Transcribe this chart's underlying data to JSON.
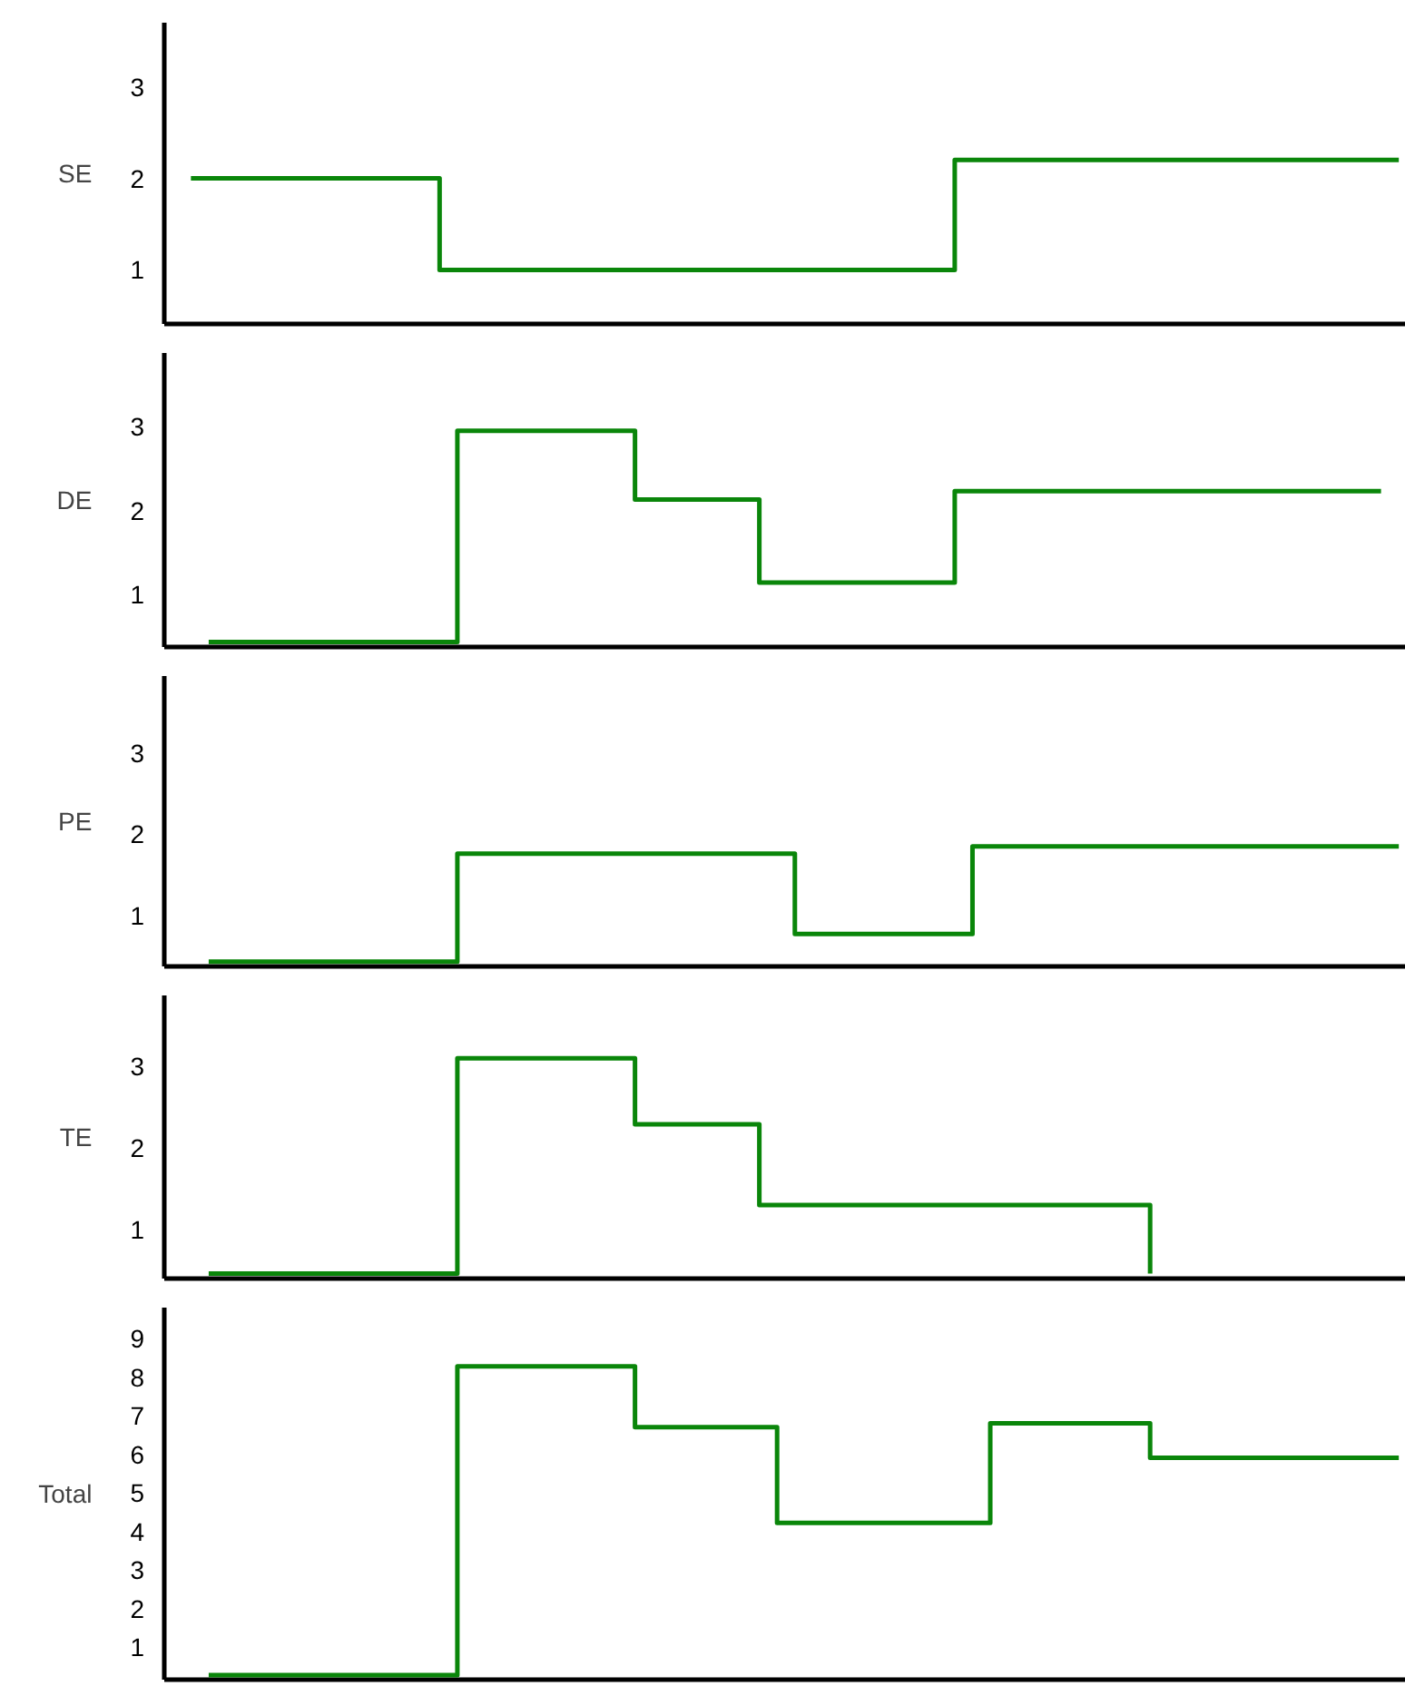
{
  "chart_data": [
    {
      "type": "step",
      "ylabel": "SE",
      "categories": [
        null,
        null,
        null,
        null,
        null,
        null,
        null,
        null,
        null,
        null,
        null,
        null,
        null,
        null,
        null,
        null,
        null,
        null,
        null,
        null,
        null,
        null,
        null,
        null,
        null,
        null,
        null,
        null,
        null,
        null,
        null,
        null,
        null,
        null,
        null,
        null,
        null,
        null,
        null,
        null,
        null,
        null,
        null,
        null,
        null,
        null,
        null,
        null,
        null,
        null,
        null,
        null,
        null,
        null,
        null,
        null,
        null,
        null,
        null,
        null,
        null,
        null,
        null,
        null,
        null,
        null,
        null,
        null,
        null
      ],
      "series": [
        {
          "color": "#0a860a",
          "values": [
            2,
            2,
            2,
            2,
            2,
            2,
            2,
            2,
            2,
            2,
            2,
            2,
            2,
            2,
            1,
            1,
            1,
            1,
            1,
            1,
            1,
            1,
            1,
            1,
            1,
            1,
            1,
            1,
            1,
            1,
            1,
            1,
            1,
            1,
            1,
            1,
            1,
            1,
            1,
            1,
            1,
            1,
            1,
            2.2,
            2.2,
            2.2,
            2.2,
            2.2,
            2.2,
            2.2,
            2.2,
            2.2,
            2.2,
            2.2,
            2.2,
            2.2,
            2.2,
            2.2,
            2.2,
            2.2,
            2.2,
            2.2,
            2.2,
            2.2,
            2.2,
            2.2,
            2.2,
            2.2,
            2.2
          ]
        }
      ],
      "ylim": [
        0.41,
        3.7
      ],
      "yticks": [
        1,
        2,
        3
      ],
      "grid": false,
      "tick_labels": "y"
    },
    {
      "type": "step",
      "ylabel": "DE",
      "categories": [
        null,
        null,
        null,
        null,
        null,
        null,
        null,
        null,
        null,
        null,
        null,
        null,
        null,
        null,
        null,
        null,
        null,
        null,
        null,
        null,
        null,
        null,
        null,
        null,
        null,
        null,
        null,
        null,
        null,
        null,
        null,
        null,
        null,
        null,
        null,
        null,
        null,
        null,
        null,
        null,
        null,
        null,
        null,
        null,
        null,
        null,
        null,
        null,
        null,
        null,
        null,
        null,
        null,
        null,
        null,
        null,
        null,
        null,
        null,
        null,
        null,
        null,
        null,
        null,
        null,
        null,
        null,
        null,
        null
      ],
      "series": [
        {
          "color": "#0a860a",
          "values": [
            null,
            0.43,
            0.43,
            0.43,
            0.43,
            0.43,
            0.43,
            0.43,
            0.43,
            0.43,
            0.43,
            0.43,
            0.43,
            0.43,
            0.43,
            2.95,
            2.95,
            2.95,
            2.95,
            2.95,
            2.95,
            2.95,
            2.95,
            2.95,
            2.95,
            2.13,
            2.13,
            2.13,
            2.13,
            2.13,
            2.13,
            2.13,
            1.14,
            1.14,
            1.14,
            1.14,
            1.14,
            1.14,
            1.14,
            1.14,
            1.14,
            1.14,
            1.14,
            2.23,
            2.23,
            2.23,
            2.23,
            2.23,
            2.23,
            2.23,
            2.23,
            2.23,
            2.23,
            2.23,
            2.23,
            2.23,
            2.23,
            2.23,
            2.23,
            2.23,
            2.23,
            2.23,
            2.23,
            2.23,
            2.23,
            2.23,
            2.23,
            2.23,
            null
          ]
        }
      ],
      "ylim": [
        0.37,
        3.88
      ],
      "yticks": [
        1,
        2,
        3
      ],
      "grid": false,
      "tick_labels": "y"
    },
    {
      "type": "step",
      "ylabel": "PE",
      "categories": [
        null,
        null,
        null,
        null,
        null,
        null,
        null,
        null,
        null,
        null,
        null,
        null,
        null,
        null,
        null,
        null,
        null,
        null,
        null,
        null,
        null,
        null,
        null,
        null,
        null,
        null,
        null,
        null,
        null,
        null,
        null,
        null,
        null,
        null,
        null,
        null,
        null,
        null,
        null,
        null,
        null,
        null,
        null,
        null,
        null,
        null,
        null,
        null,
        null,
        null,
        null,
        null,
        null,
        null,
        null,
        null,
        null,
        null,
        null,
        null,
        null,
        null,
        null,
        null,
        null,
        null,
        null,
        null,
        null
      ],
      "series": [
        {
          "color": "#0a860a",
          "values": [
            null,
            0.43,
            0.43,
            0.43,
            0.43,
            0.43,
            0.43,
            0.43,
            0.43,
            0.43,
            0.43,
            0.43,
            0.43,
            0.43,
            0.43,
            1.76,
            1.76,
            1.76,
            1.76,
            1.76,
            1.76,
            1.76,
            1.76,
            1.76,
            1.76,
            1.76,
            1.76,
            1.76,
            1.76,
            1.76,
            1.76,
            1.76,
            1.76,
            1.76,
            0.77,
            0.77,
            0.77,
            0.77,
            0.77,
            0.77,
            0.77,
            0.77,
            0.77,
            0.77,
            1.85,
            1.85,
            1.85,
            1.85,
            1.85,
            1.85,
            1.85,
            1.85,
            1.85,
            1.85,
            1.85,
            1.85,
            1.85,
            1.85,
            1.85,
            1.85,
            1.85,
            1.85,
            1.85,
            1.85,
            1.85,
            1.85,
            1.85,
            1.85,
            1.85
          ]
        }
      ],
      "ylim": [
        0.37,
        3.95
      ],
      "yticks": [
        1,
        2,
        3
      ],
      "grid": false,
      "tick_labels": "y"
    },
    {
      "type": "step",
      "ylabel": "TE",
      "categories": [
        null,
        null,
        null,
        null,
        null,
        null,
        null,
        null,
        null,
        null,
        null,
        null,
        null,
        null,
        null,
        null,
        null,
        null,
        null,
        null,
        null,
        null,
        null,
        null,
        null,
        null,
        null,
        null,
        null,
        null,
        null,
        null,
        null,
        null,
        null,
        null,
        null,
        null,
        null,
        null,
        null,
        null,
        null,
        null,
        null,
        null,
        null,
        null,
        null,
        null,
        null,
        null,
        null,
        null,
        null,
        null,
        null,
        null,
        null,
        null,
        null,
        null,
        null,
        null,
        null,
        null,
        null,
        null,
        null
      ],
      "series": [
        {
          "color": "#0a860a",
          "values": [
            null,
            0.46,
            0.46,
            0.46,
            0.46,
            0.46,
            0.46,
            0.46,
            0.46,
            0.46,
            0.46,
            0.46,
            0.46,
            0.46,
            0.46,
            3.1,
            3.1,
            3.1,
            3.1,
            3.1,
            3.1,
            3.1,
            3.1,
            3.1,
            3.1,
            2.29,
            2.29,
            2.29,
            2.29,
            2.29,
            2.29,
            2.29,
            1.3,
            1.3,
            1.3,
            1.3,
            1.3,
            1.3,
            1.3,
            1.3,
            1.3,
            1.3,
            1.3,
            1.3,
            1.3,
            1.3,
            1.3,
            1.3,
            1.3,
            1.3,
            1.3,
            1.3,
            1.3,
            1.3,
            0.46,
            null,
            null,
            null,
            null,
            null,
            null,
            null,
            null,
            null,
            null,
            null,
            null,
            null,
            null
          ]
        }
      ],
      "ylim": [
        0.4,
        3.87
      ],
      "yticks": [
        1,
        2,
        3
      ],
      "grid": false,
      "tick_labels": "y"
    },
    {
      "type": "step",
      "ylabel": "Total",
      "categories": [
        null,
        null,
        null,
        null,
        null,
        null,
        null,
        null,
        null,
        null,
        null,
        null,
        null,
        null,
        null,
        null,
        null,
        null,
        null,
        null,
        null,
        null,
        null,
        null,
        null,
        null,
        null,
        null,
        null,
        null,
        null,
        null,
        null,
        null,
        null,
        null,
        null,
        null,
        null,
        null,
        null,
        null,
        null,
        null,
        null,
        null,
        null,
        null,
        null,
        null,
        null,
        null,
        null,
        null,
        null,
        null,
        null,
        null,
        null,
        null,
        null,
        null,
        null,
        null,
        null,
        null,
        null,
        null,
        null
      ],
      "series": [
        {
          "color": "#0a860a",
          "values": [
            null,
            0.28,
            0.28,
            0.28,
            0.28,
            0.28,
            0.28,
            0.28,
            0.28,
            0.28,
            0.28,
            0.28,
            0.28,
            0.28,
            0.28,
            8.28,
            8.28,
            8.28,
            8.28,
            8.28,
            8.28,
            8.28,
            8.28,
            8.28,
            8.28,
            6.7,
            6.7,
            6.7,
            6.7,
            6.7,
            6.7,
            6.7,
            6.7,
            4.22,
            4.22,
            4.22,
            4.22,
            4.22,
            4.22,
            4.22,
            4.22,
            4.22,
            4.22,
            4.22,
            4.22,
            6.8,
            6.8,
            6.8,
            6.8,
            6.8,
            6.8,
            6.8,
            6.8,
            6.8,
            5.91,
            5.91,
            5.91,
            5.91,
            5.91,
            5.91,
            5.91,
            5.91,
            5.91,
            5.91,
            5.91,
            5.91,
            5.91,
            5.91,
            5.91
          ]
        }
      ],
      "ylim": [
        0.16,
        9.8
      ],
      "yticks": [
        1,
        2,
        3,
        4,
        5,
        6,
        7,
        8,
        9
      ],
      "grid": false,
      "tick_labels": "y"
    }
  ]
}
